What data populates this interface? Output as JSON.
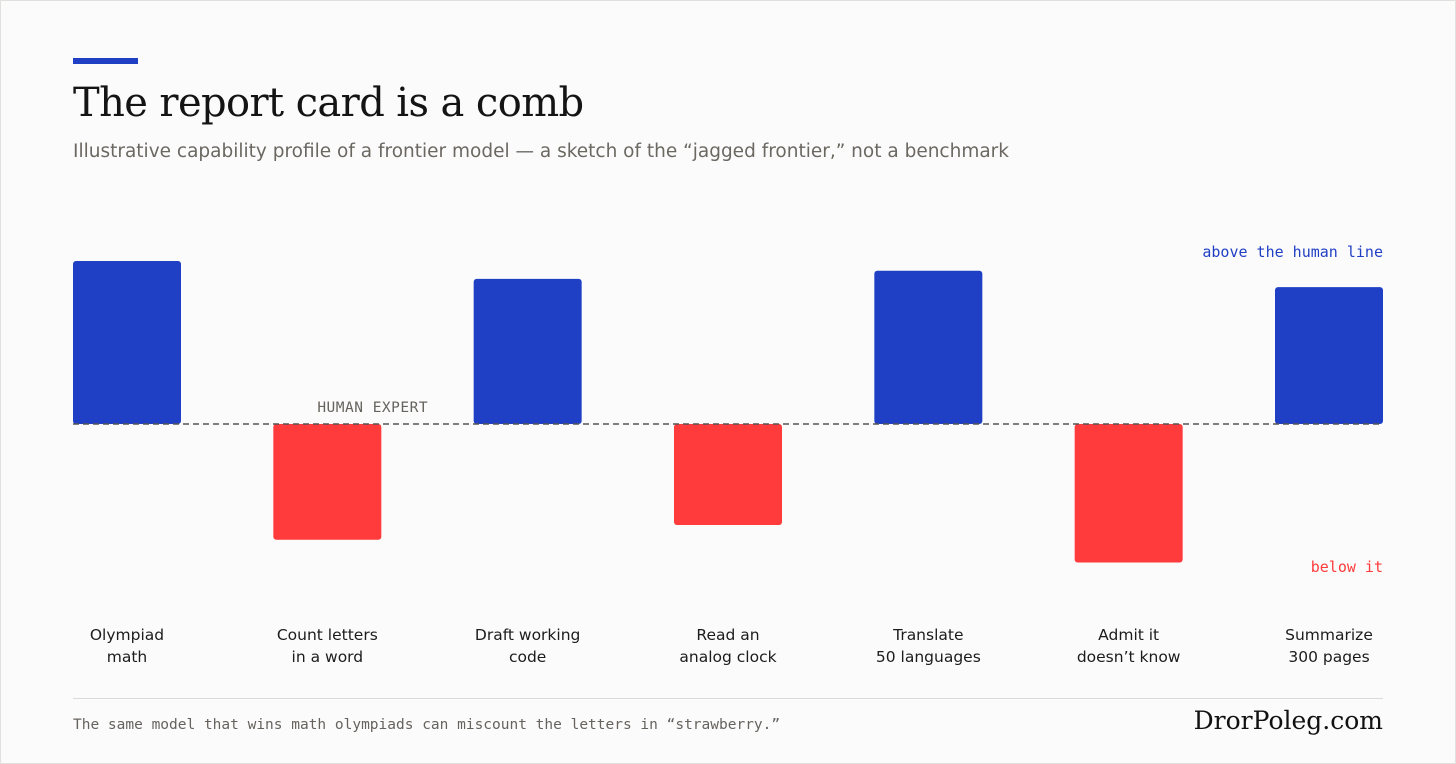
{
  "header": {
    "title": "The report card is a comb",
    "subtitle": "Illustrative capability profile of a frontier model — a sketch of the “jagged frontier,” not a benchmark"
  },
  "chart_data": {
    "type": "bar",
    "categories": [
      [
        "Olympiad",
        "math"
      ],
      [
        "Count letters",
        "in a word"
      ],
      [
        "Draft working",
        "code"
      ],
      [
        "Read an",
        "analog clock"
      ],
      [
        "Translate",
        "50 languages"
      ],
      [
        "Admit it",
        "doesn’t know"
      ],
      [
        "Summarize",
        "300 pages"
      ]
    ],
    "values": [
      1.0,
      -0.71,
      0.89,
      -0.62,
      0.94,
      -0.85,
      0.84
    ],
    "baseline_label": "HUMAN EXPERT",
    "above_label": "above the human line",
    "below_label": "below it",
    "ylim": [
      -1,
      1
    ],
    "grid": false,
    "colors": {
      "above": "#1f3fc5",
      "below": "#ff3b3b",
      "baseline": "#555555"
    }
  },
  "footer": {
    "note": "The same model that wins math olympiads can miscount the letters in “strawberry.”",
    "brand": "DrorPoleg.com"
  }
}
